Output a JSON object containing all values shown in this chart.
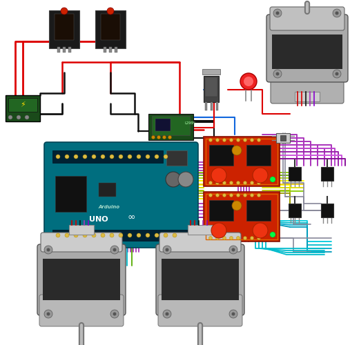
{
  "bg_color": "#ffffff",
  "wire_colors": {
    "red": "#dd0000",
    "black": "#111111",
    "blue": "#1166dd",
    "purple": "#aa33bb",
    "magenta": "#cc44cc",
    "yellow": "#dddd00",
    "lime": "#88cc00",
    "cyan": "#00bbcc",
    "gray": "#888899",
    "orange": "#dd8800",
    "dark_red": "#880000",
    "white_wire": "#cccccc",
    "pink": "#dd6688"
  },
  "layout": {
    "figw": 5.07,
    "figh": 5.0,
    "dpi": 100,
    "xlim": [
      0,
      507
    ],
    "ylim": [
      0,
      500
    ]
  }
}
